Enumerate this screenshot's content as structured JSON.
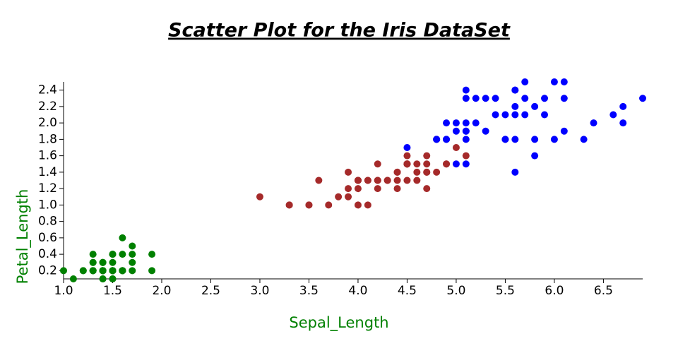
{
  "chart_data": {
    "type": "scatter",
    "title": "Scatter Plot for the Iris DataSet",
    "x_label": "Sepal_Length",
    "y_label": "Petal_Length",
    "xlim": [
      1.0,
      6.9
    ],
    "ylim": [
      0.1,
      2.5
    ],
    "xticks": [
      {
        "value": 1,
        "label": "1.0"
      },
      1.5,
      {
        "value": 2,
        "label": "2.0"
      },
      2.5,
      {
        "value": 3,
        "label": "3.0"
      },
      3.5,
      {
        "value": 4,
        "label": "4.0"
      },
      4.5,
      {
        "value": 5,
        "label": "5.0"
      },
      5.5,
      {
        "value": 6,
        "label": "6.0"
      },
      6.5
    ],
    "yticks": [
      0.2,
      0.4,
      0.6,
      0.8,
      {
        "value": 1,
        "label": "1.0"
      },
      1.2,
      1.4,
      1.6,
      1.8,
      {
        "value": 2,
        "label": "2.0"
      },
      2.2,
      2.4
    ],
    "series": [
      {
        "color": "#008000",
        "x": [
          1.4,
          1.4,
          1.3,
          1.5,
          1.4,
          1.7,
          1.4,
          1.5,
          1.4,
          1.5,
          1.5,
          1.6,
          1.4,
          1.1,
          1.2,
          1.5,
          1.3,
          1.4,
          1.7,
          1.5,
          1.7,
          1.5,
          1.0,
          1.7,
          1.9,
          1.6,
          1.6,
          1.5,
          1.4,
          1.6,
          1.6,
          1.5,
          1.5,
          1.4,
          1.5,
          1.2,
          1.3,
          1.4,
          1.3,
          1.5,
          1.3,
          1.3,
          1.3,
          1.6,
          1.9,
          1.4,
          1.6,
          1.4,
          1.5,
          1.4
        ],
        "y": [
          0.2,
          0.2,
          0.2,
          0.2,
          0.2,
          0.4,
          0.3,
          0.2,
          0.2,
          0.1,
          0.2,
          0.2,
          0.1,
          0.1,
          0.2,
          0.4,
          0.4,
          0.3,
          0.3,
          0.3,
          0.2,
          0.4,
          0.2,
          0.5,
          0.2,
          0.2,
          0.4,
          0.2,
          0.2,
          0.2,
          0.2,
          0.4,
          0.1,
          0.2,
          0.2,
          0.2,
          0.2,
          0.1,
          0.2,
          0.2,
          0.3,
          0.3,
          0.2,
          0.6,
          0.4,
          0.3,
          0.2,
          0.2,
          0.2,
          0.2
        ]
      },
      {
        "color": "#a52a2a",
        "x": [
          4.7,
          4.5,
          4.9,
          4.0,
          4.6,
          4.5,
          4.7,
          3.3,
          4.6,
          3.9,
          3.5,
          4.2,
          4.0,
          4.7,
          3.6,
          4.4,
          4.5,
          4.1,
          4.5,
          3.9,
          4.8,
          4.0,
          4.9,
          4.7,
          4.3,
          4.4,
          4.8,
          5.0,
          4.5,
          3.5,
          3.8,
          3.7,
          3.9,
          5.1,
          4.5,
          4.5,
          4.7,
          4.4,
          4.1,
          4.0,
          4.4,
          4.6,
          4.0,
          3.3,
          4.2,
          4.2,
          4.2,
          4.3,
          3.0,
          4.1
        ],
        "y": [
          1.4,
          1.5,
          1.5,
          1.3,
          1.5,
          1.3,
          1.6,
          1.0,
          1.3,
          1.4,
          1.0,
          1.5,
          1.0,
          1.4,
          1.3,
          1.4,
          1.5,
          1.0,
          1.5,
          1.1,
          1.8,
          1.3,
          1.5,
          1.2,
          1.3,
          1.4,
          1.4,
          1.7,
          1.5,
          1.0,
          1.1,
          1.0,
          1.2,
          1.6,
          1.5,
          1.6,
          1.5,
          1.3,
          1.3,
          1.3,
          1.2,
          1.4,
          1.2,
          1.0,
          1.3,
          1.2,
          1.3,
          1.3,
          1.1,
          1.3
        ]
      },
      {
        "color": "#0000ff",
        "x": [
          6.0,
          5.1,
          5.9,
          5.6,
          5.8,
          6.6,
          4.5,
          6.3,
          5.8,
          6.1,
          5.1,
          5.3,
          5.5,
          5.0,
          5.1,
          5.3,
          5.5,
          6.7,
          6.9,
          5.0,
          5.7,
          4.9,
          6.7,
          4.9,
          5.7,
          6.0,
          4.8,
          4.9,
          5.6,
          5.8,
          6.1,
          6.4,
          5.6,
          5.1,
          5.6,
          6.1,
          5.6,
          5.5,
          4.8,
          5.4,
          5.6,
          5.1,
          5.1,
          5.9,
          5.7,
          5.2,
          5.0,
          5.2,
          5.4,
          5.1
        ],
        "y": [
          2.5,
          1.9,
          2.1,
          1.8,
          2.2,
          2.1,
          1.7,
          1.8,
          1.8,
          2.5,
          2.0,
          1.9,
          2.1,
          2.0,
          2.4,
          2.3,
          1.8,
          2.2,
          2.3,
          1.5,
          2.3,
          2.0,
          2.0,
          1.8,
          2.1,
          1.8,
          1.8,
          1.8,
          2.1,
          1.6,
          1.9,
          2.0,
          2.2,
          1.5,
          1.4,
          2.3,
          2.4,
          1.8,
          1.8,
          2.1,
          2.4,
          2.3,
          1.9,
          2.3,
          2.5,
          2.3,
          1.9,
          2.0,
          2.3,
          1.8
        ]
      }
    ]
  }
}
